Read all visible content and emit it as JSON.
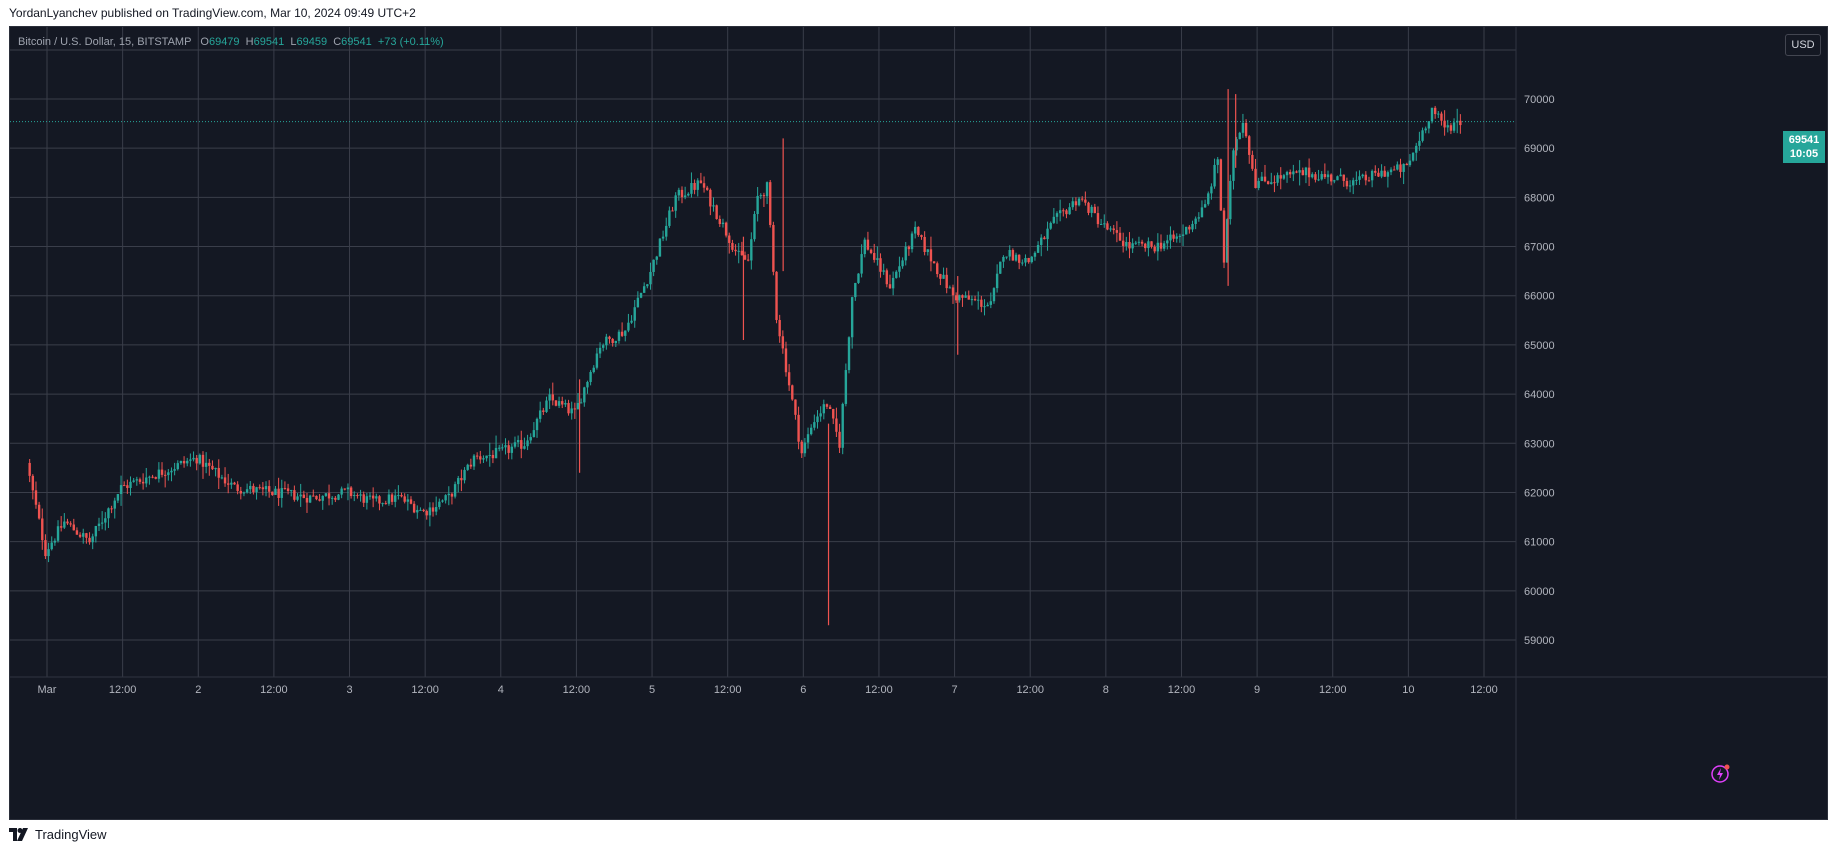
{
  "header": {
    "credit": "YordanLyanchev published on TradingView.com, Mar 10, 2024 09:49 UTC+2"
  },
  "symbol": {
    "name": "Bitcoin / U.S. Dollar, 15, BITSTAMP",
    "o_label": "O",
    "o_value": "69479",
    "h_label": "H",
    "h_value": "69541",
    "l_label": "L",
    "l_value": "69459",
    "c_label": "C",
    "c_value": "69541",
    "change": "+73 (+0.11%)"
  },
  "currency": "USD",
  "price_badge": {
    "price": "69541",
    "countdown": "10:05"
  },
  "footer": {
    "brand": "TradingView"
  },
  "colors": {
    "background": "#141823",
    "grid": "#3a3e4a",
    "up": "#26a69a",
    "down": "#ef5350",
    "axis_text": "#b2b5be"
  },
  "chart_data": {
    "type": "candlestick",
    "title": "Bitcoin / U.S. Dollar, 15, BITSTAMP",
    "ylim": [
      58000,
      71000
    ],
    "y_ticks": [
      59000,
      60000,
      61000,
      62000,
      63000,
      64000,
      65000,
      66000,
      67000,
      68000,
      69000,
      70000
    ],
    "x_ticks": [
      "Mar",
      "12:00",
      "2",
      "12:00",
      "3",
      "12:00",
      "4",
      "12:00",
      "5",
      "12:00",
      "6",
      "12:00",
      "7",
      "12:00",
      "8",
      "12:00",
      "9",
      "12:00",
      "10",
      "12:00"
    ],
    "x_tick_hours": [
      0,
      12,
      24,
      36,
      48,
      60,
      72,
      84,
      96,
      108,
      120,
      132,
      144,
      156,
      168,
      180,
      192,
      204,
      216,
      228
    ],
    "x_range_hours": [
      -3,
      237
    ],
    "last_price": 69541,
    "path_hours": [
      -3,
      0,
      3,
      7,
      12,
      18,
      24,
      30,
      36,
      42,
      48,
      52,
      56,
      60,
      64,
      68,
      72,
      76,
      80,
      84,
      88,
      92,
      96,
      100,
      104,
      108,
      110,
      111.5,
      113,
      114.5,
      116,
      118,
      120,
      122,
      124,
      126,
      128,
      130,
      134,
      138,
      144,
      150,
      152,
      156,
      160,
      164,
      168,
      172,
      176,
      180,
      184,
      186,
      187,
      188.5,
      190,
      192,
      196,
      200,
      204,
      208,
      212,
      216,
      218,
      220,
      222,
      224
    ],
    "path_prices": [
      62600,
      60800,
      61400,
      61000,
      62100,
      62400,
      62700,
      62100,
      62000,
      61900,
      62000,
      61800,
      61900,
      61600,
      61900,
      62700,
      62800,
      63000,
      63900,
      63600,
      65000,
      65300,
      66500,
      68000,
      68300,
      67300,
      66800,
      66700,
      68000,
      68200,
      65600,
      64200,
      62800,
      63500,
      63800,
      63000,
      66000,
      67100,
      66200,
      67300,
      66000,
      65800,
      66900,
      66700,
      67500,
      68000,
      67400,
      67000,
      67000,
      67200,
      67800,
      68800,
      66700,
      69000,
      69600,
      68300,
      68400,
      68500,
      68400,
      68300,
      68500,
      68600,
      69200,
      69800,
      69400,
      69541
    ]
  }
}
